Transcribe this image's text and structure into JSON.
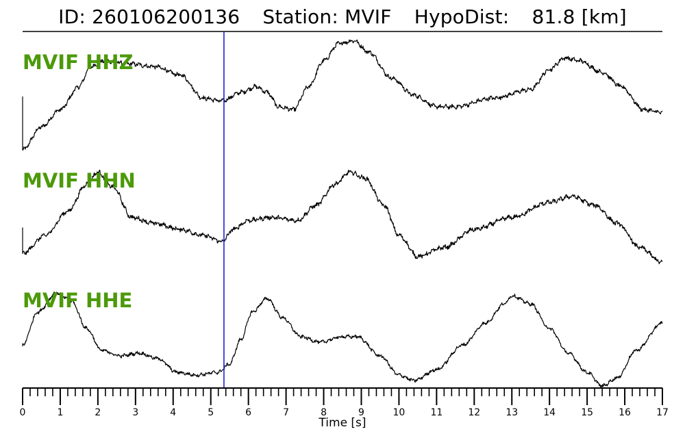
{
  "header": {
    "id_label": "ID:",
    "id_value": "260106200136",
    "station_label": "Station:",
    "station_value": "MVIF",
    "hypodist_label": "HypoDist:",
    "hypodist_value": "81.8 [km]"
  },
  "colors": {
    "trace": "#000000",
    "pick_line": "#1f1fd0",
    "channel_label": "#4c9a0a",
    "axis": "#000000"
  },
  "chart_data": {
    "type": "line",
    "xlabel": "Time [s]",
    "xlim": [
      0,
      17
    ],
    "x_ticks": [
      0,
      1,
      2,
      3,
      4,
      5,
      6,
      7,
      8,
      9,
      10,
      11,
      12,
      13,
      14,
      15,
      16,
      17
    ],
    "x_tick_labels": [
      "0",
      "1",
      "2",
      "3",
      "4",
      "5",
      "6",
      "7",
      "8",
      "9",
      "10",
      "11",
      "12",
      "13",
      "14",
      "15",
      "16",
      "17"
    ],
    "minor_tick_step": 0.2,
    "pick_time": 5.35,
    "grid": false,
    "series": [
      {
        "name": "MVIF HHZ",
        "noise": 0.03,
        "points": [
          [
            0,
            -1.0
          ],
          [
            0.5,
            -0.6
          ],
          [
            1.0,
            -0.3
          ],
          [
            1.5,
            0.1
          ],
          [
            1.8,
            0.45
          ],
          [
            2.2,
            0.55
          ],
          [
            2.8,
            0.5
          ],
          [
            3.5,
            0.45
          ],
          [
            4.2,
            0.3
          ],
          [
            4.8,
            -0.1
          ],
          [
            5.3,
            -0.15
          ],
          [
            5.8,
            0.0
          ],
          [
            6.2,
            0.1
          ],
          [
            6.5,
            0.0
          ],
          [
            6.8,
            -0.25
          ],
          [
            7.2,
            -0.3
          ],
          [
            7.6,
            0.1
          ],
          [
            8.0,
            0.55
          ],
          [
            8.4,
            0.85
          ],
          [
            8.8,
            0.9
          ],
          [
            9.2,
            0.7
          ],
          [
            9.8,
            0.25
          ],
          [
            10.4,
            -0.05
          ],
          [
            11.0,
            -0.25
          ],
          [
            11.5,
            -0.25
          ],
          [
            12.5,
            -0.1
          ],
          [
            13.5,
            0.05
          ],
          [
            14.0,
            0.4
          ],
          [
            14.4,
            0.6
          ],
          [
            14.8,
            0.55
          ],
          [
            15.4,
            0.35
          ],
          [
            15.9,
            0.1
          ],
          [
            16.5,
            -0.3
          ],
          [
            17.0,
            -0.35
          ]
        ]
      },
      {
        "name": "MVIF HHN",
        "noise": 0.03,
        "points": [
          [
            0,
            -0.8
          ],
          [
            0.6,
            -0.5
          ],
          [
            1.2,
            -0.1
          ],
          [
            1.7,
            0.35
          ],
          [
            2.0,
            0.55
          ],
          [
            2.4,
            0.3
          ],
          [
            2.9,
            -0.2
          ],
          [
            3.5,
            -0.3
          ],
          [
            4.2,
            -0.4
          ],
          [
            4.8,
            -0.5
          ],
          [
            5.3,
            -0.6
          ],
          [
            5.6,
            -0.4
          ],
          [
            6.0,
            -0.25
          ],
          [
            6.6,
            -0.2
          ],
          [
            7.3,
            -0.25
          ],
          [
            7.8,
            0.0
          ],
          [
            8.3,
            0.35
          ],
          [
            8.7,
            0.55
          ],
          [
            9.1,
            0.45
          ],
          [
            9.6,
            0.0
          ],
          [
            10.0,
            -0.5
          ],
          [
            10.5,
            -0.85
          ],
          [
            11.2,
            -0.7
          ],
          [
            12.0,
            -0.4
          ],
          [
            13.0,
            -0.2
          ],
          [
            14.0,
            0.05
          ],
          [
            14.6,
            0.15
          ],
          [
            15.2,
            0.0
          ],
          [
            15.8,
            -0.3
          ],
          [
            16.4,
            -0.7
          ],
          [
            17.0,
            -0.95
          ]
        ]
      },
      {
        "name": "MVIF HHE",
        "noise": 0.025,
        "points": [
          [
            0,
            -0.2
          ],
          [
            0.4,
            0.4
          ],
          [
            0.9,
            0.75
          ],
          [
            1.3,
            0.6
          ],
          [
            1.7,
            0.1
          ],
          [
            2.1,
            -0.3
          ],
          [
            2.6,
            -0.4
          ],
          [
            3.1,
            -0.35
          ],
          [
            3.6,
            -0.45
          ],
          [
            4.1,
            -0.7
          ],
          [
            4.6,
            -0.75
          ],
          [
            5.2,
            -0.7
          ],
          [
            5.5,
            -0.55
          ],
          [
            5.8,
            -0.1
          ],
          [
            6.1,
            0.4
          ],
          [
            6.5,
            0.65
          ],
          [
            6.9,
            0.3
          ],
          [
            7.4,
            -0.05
          ],
          [
            7.9,
            -0.15
          ],
          [
            8.5,
            -0.05
          ],
          [
            8.9,
            -0.05
          ],
          [
            9.5,
            -0.4
          ],
          [
            10.0,
            -0.75
          ],
          [
            10.4,
            -0.85
          ],
          [
            11.0,
            -0.65
          ],
          [
            11.7,
            -0.2
          ],
          [
            12.3,
            0.2
          ],
          [
            12.8,
            0.55
          ],
          [
            13.0,
            0.7
          ],
          [
            13.5,
            0.55
          ],
          [
            14.0,
            0.1
          ],
          [
            14.5,
            -0.35
          ],
          [
            15.0,
            -0.7
          ],
          [
            15.4,
            -0.95
          ],
          [
            15.8,
            -0.8
          ],
          [
            16.3,
            -0.3
          ],
          [
            17.0,
            0.2
          ]
        ]
      }
    ]
  }
}
